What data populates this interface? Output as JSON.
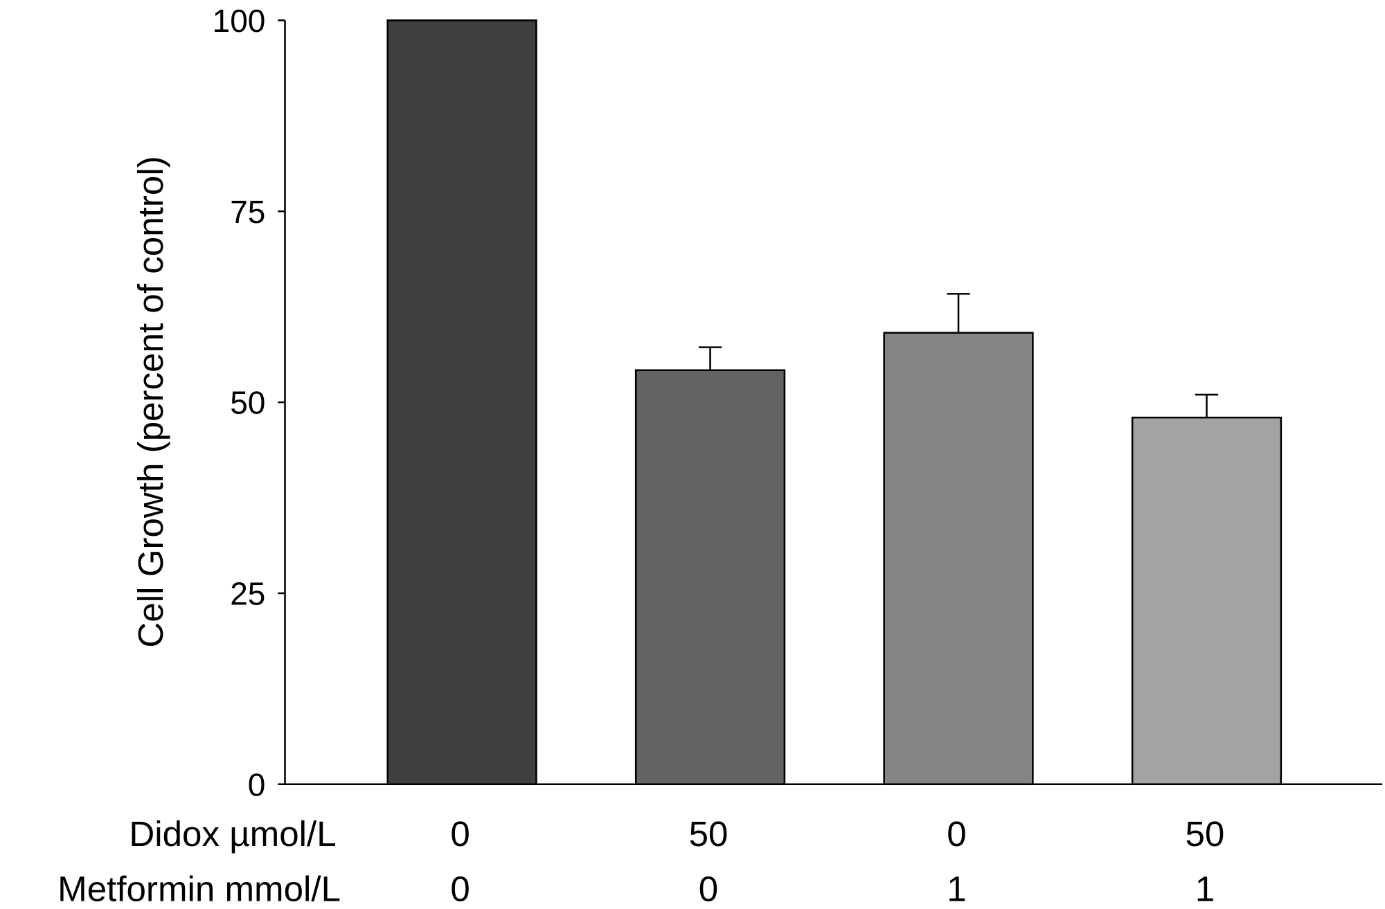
{
  "chart_data": {
    "type": "bar",
    "ylabel": "Cell Growth (percent of control)",
    "ylim": [
      0,
      100
    ],
    "yticks": [
      0,
      25,
      50,
      75,
      100
    ],
    "grid": false,
    "row_labels": [
      "Didox µmol/L",
      "Metformin mmol/L"
    ],
    "categories": [
      {
        "didox": "0",
        "metformin": "0"
      },
      {
        "didox": "50",
        "metformin": "0"
      },
      {
        "didox": "0",
        "metformin": "1"
      },
      {
        "didox": "50",
        "metformin": "1"
      }
    ],
    "values": [
      100,
      54.2,
      59.1,
      48.0
    ],
    "errors": [
      0,
      3.0,
      5.1,
      3.0
    ],
    "colors": [
      "#404040",
      "#636363",
      "#858585",
      "#a3a3a3"
    ]
  }
}
